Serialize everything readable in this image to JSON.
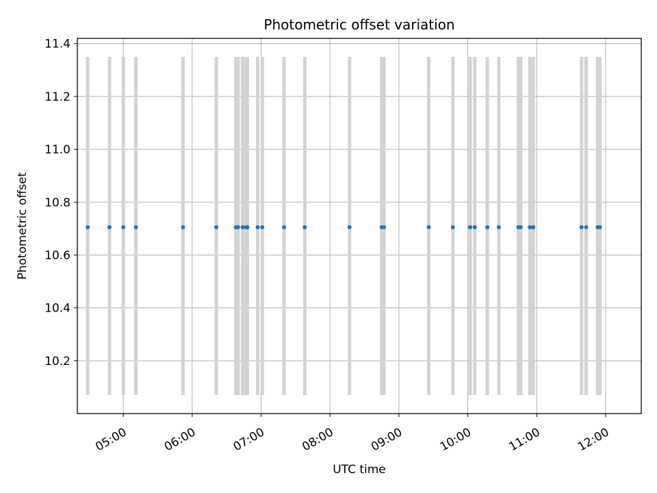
{
  "chart_data": {
    "type": "scatter",
    "title": "Photometric offset variation",
    "xlabel": "UTC time",
    "ylabel": "Photometric offset",
    "grid": true,
    "x_axis": "time of day (UTC, HH:MM)",
    "xlim": [
      "04:20",
      "12:31"
    ],
    "ylim": [
      10.0,
      11.42
    ],
    "x_ticks": [
      "05:00",
      "06:00",
      "07:00",
      "08:00",
      "09:00",
      "10:00",
      "11:00",
      "12:00"
    ],
    "y_ticks": [
      10.2,
      10.4,
      10.6,
      10.8,
      11.0,
      11.2,
      11.4
    ],
    "x_tick_rotation_deg": 30,
    "series": [
      {
        "marker_color": "#1f77b4",
        "errorbar_color": "#d3d3d3",
        "y": 10.705,
        "y_err_low": 10.07,
        "y_err_high": 11.35,
        "x": [
          "04:29",
          "04:48",
          "05:00",
          "05:11",
          "05:52",
          "06:21",
          "06:38",
          "06:40",
          "06:44",
          "06:47",
          "06:48",
          "06:57",
          "07:01",
          "07:20",
          "07:38",
          "08:17",
          "08:45",
          "08:47",
          "09:26",
          "09:47",
          "10:02",
          "10:06",
          "10:17",
          "10:27",
          "10:44",
          "10:46",
          "10:54",
          "10:57",
          "11:39",
          "11:43",
          "11:53",
          "11:55"
        ]
      }
    ]
  }
}
